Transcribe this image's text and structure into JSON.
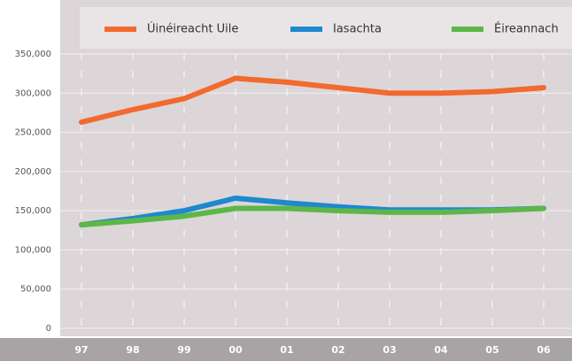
{
  "chart_data": {
    "type": "line",
    "categories": [
      "97",
      "98",
      "99",
      "00",
      "01",
      "02",
      "03",
      "04",
      "05",
      "06"
    ],
    "series": [
      {
        "name": "Úinéireacht Uile",
        "color": "#f26a2e",
        "values": [
          263000,
          279000,
          293000,
          319000,
          314000,
          307000,
          300000,
          300000,
          302000,
          307000
        ]
      },
      {
        "name": "Iasachta",
        "color": "#1e88d0",
        "values": [
          132000,
          140000,
          150000,
          166000,
          160000,
          155000,
          151000,
          151000,
          151000,
          153000
        ]
      },
      {
        "name": "Éireannach",
        "color": "#5cb748",
        "values": [
          132000,
          137000,
          143000,
          153000,
          153000,
          150000,
          148000,
          148000,
          150000,
          153000
        ]
      }
    ],
    "ylim": [
      0,
      350000
    ],
    "yticks": [
      0,
      {
        "value": 50000,
        "label": "50,000"
      },
      {
        "value": 100000,
        "label": "100,000"
      },
      {
        "value": 150000,
        "label": "150,000"
      },
      {
        "value": 200000,
        "label": "200,000"
      },
      {
        "value": 250000,
        "label": "250,000"
      },
      {
        "value": 300000,
        "label": "300,000"
      },
      {
        "value": 350000,
        "label": "350,000"
      }
    ],
    "grid": true,
    "legend": "top"
  }
}
